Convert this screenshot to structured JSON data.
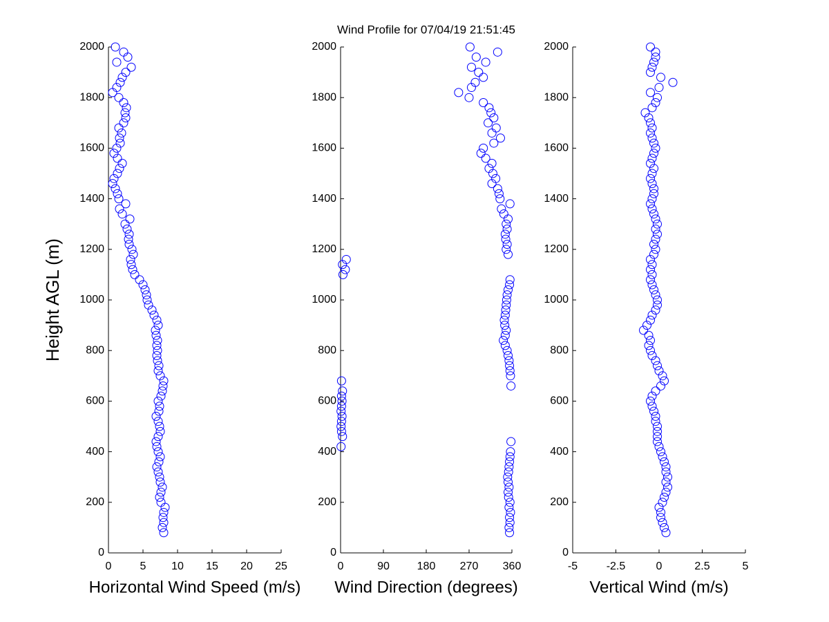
{
  "chart_data": [
    {
      "type": "scatter",
      "xlabel": "Horizontal Wind Speed (m/s)",
      "ylabel": "Height AGL (m)",
      "color": "#0000ff",
      "marker": "o",
      "xlim": [
        0,
        25
      ],
      "xticks": [
        0,
        5,
        10,
        15,
        20,
        25
      ],
      "ylim": [
        0,
        2000
      ],
      "yticks": [
        0,
        200,
        400,
        600,
        800,
        1000,
        1200,
        1400,
        1600,
        1800,
        2000
      ],
      "x": [
        8.0,
        7.8,
        8.0,
        7.9,
        8.0,
        8.2,
        7.6,
        7.4,
        7.6,
        7.8,
        7.5,
        7.4,
        7.2,
        7.0,
        7.3,
        7.5,
        7.2,
        7.0,
        6.9,
        7.2,
        7.5,
        7.4,
        7.2,
        6.9,
        7.3,
        7.4,
        7.2,
        7.6,
        7.8,
        7.9,
        8.0,
        7.5,
        7.2,
        7.3,
        7.1,
        7.0,
        7.1,
        7.0,
        7.1,
        6.9,
        6.8,
        7.2,
        7.0,
        6.6,
        6.3,
        5.8,
        5.6,
        5.5,
        5.3,
        5.0,
        4.5,
        3.8,
        3.5,
        3.3,
        3.2,
        3.6,
        3.4,
        3.0,
        2.9,
        3.0,
        2.7,
        2.4,
        3.1,
        2.0,
        1.6,
        2.5,
        1.5,
        1.3,
        1.0,
        0.6,
        0.8,
        1.3,
        1.6,
        2.0,
        1.3,
        0.8,
        1.2,
        1.7,
        1.6,
        1.9,
        1.5,
        2.2,
        2.5,
        2.4,
        2.6,
        2.2,
        1.5,
        0.6,
        1.2,
        1.7,
        2.0,
        2.5,
        3.3,
        1.2,
        2.8,
        2.2,
        1.0
      ],
      "y": [
        80,
        100,
        120,
        140,
        160,
        180,
        200,
        220,
        240,
        260,
        280,
        300,
        320,
        340,
        360,
        380,
        400,
        420,
        440,
        460,
        480,
        500,
        520,
        540,
        560,
        580,
        600,
        620,
        640,
        660,
        680,
        700,
        720,
        740,
        760,
        780,
        800,
        820,
        840,
        860,
        880,
        900,
        920,
        940,
        960,
        980,
        1000,
        1020,
        1040,
        1060,
        1080,
        1100,
        1120,
        1140,
        1160,
        1180,
        1200,
        1220,
        1240,
        1260,
        1280,
        1300,
        1320,
        1340,
        1360,
        1380,
        1400,
        1420,
        1440,
        1460,
        1480,
        1500,
        1520,
        1540,
        1560,
        1580,
        1600,
        1620,
        1640,
        1660,
        1680,
        1700,
        1720,
        1740,
        1760,
        1780,
        1800,
        1820,
        1840,
        1860,
        1880,
        1900,
        1920,
        1940,
        1960,
        1980,
        2000
      ]
    },
    {
      "type": "scatter",
      "title": "Wind Profile for  07/04/19 21:51:45",
      "xlabel": "Wind Direction (degrees)",
      "color": "#0000ff",
      "marker": "o",
      "xlim": [
        0,
        360
      ],
      "xticks": [
        0,
        90,
        180,
        270,
        360
      ],
      "ylim": [
        0,
        2000
      ],
      "yticks": [
        0,
        200,
        400,
        600,
        800,
        1000,
        1200,
        1400,
        1600,
        1800,
        2000
      ],
      "x": [
        355,
        354,
        356,
        355,
        357,
        354,
        356,
        353,
        352,
        354,
        352,
        351,
        353,
        354,
        355,
        356,
        357,
        1,
        358,
        4,
        2,
        1,
        2,
        3,
        1,
        2,
        3,
        2,
        4,
        358,
        2,
        357,
        356,
        355,
        354,
        352,
        350,
        346,
        342,
        346,
        348,
        345,
        344,
        346,
        347,
        348,
        349,
        350,
        352,
        355,
        356,
        5,
        10,
        4,
        12,
        352,
        348,
        350,
        347,
        346,
        350,
        348,
        352,
        343,
        338,
        356,
        335,
        333,
        330,
        318,
        326,
        320,
        312,
        318,
        305,
        295,
        300,
        322,
        336,
        318,
        327,
        310,
        322,
        316,
        312,
        300,
        270,
        248,
        275,
        283,
        300,
        290,
        275,
        305,
        285,
        330,
        272
      ],
      "y": [
        80,
        100,
        120,
        140,
        160,
        180,
        200,
        220,
        240,
        260,
        280,
        300,
        320,
        340,
        360,
        380,
        400,
        420,
        440,
        460,
        480,
        500,
        520,
        540,
        560,
        580,
        600,
        620,
        640,
        660,
        680,
        700,
        720,
        740,
        760,
        780,
        800,
        820,
        840,
        860,
        880,
        900,
        920,
        940,
        960,
        980,
        1000,
        1020,
        1040,
        1060,
        1080,
        1100,
        1120,
        1140,
        1160,
        1180,
        1200,
        1220,
        1240,
        1260,
        1280,
        1300,
        1320,
        1340,
        1360,
        1380,
        1400,
        1420,
        1440,
        1460,
        1480,
        1500,
        1520,
        1540,
        1560,
        1580,
        1600,
        1620,
        1640,
        1660,
        1680,
        1700,
        1720,
        1740,
        1760,
        1780,
        1800,
        1820,
        1840,
        1860,
        1880,
        1900,
        1920,
        1940,
        1960,
        1980,
        2000
      ]
    },
    {
      "type": "scatter",
      "xlabel": "Vertical Wind (m/s)",
      "color": "#0000ff",
      "marker": "o",
      "xlim": [
        -5,
        5
      ],
      "xticks": [
        -5,
        -2.5,
        0,
        2.5,
        5
      ],
      "ylim": [
        0,
        2000
      ],
      "yticks": [
        0,
        200,
        400,
        600,
        800,
        1000,
        1200,
        1400,
        1600,
        1800,
        2000
      ],
      "x": [
        0.4,
        0.3,
        0.2,
        0.1,
        0.1,
        0.0,
        0.2,
        0.3,
        0.4,
        0.5,
        0.4,
        0.5,
        0.4,
        0.4,
        0.3,
        0.2,
        0.1,
        0.0,
        -0.1,
        -0.1,
        -0.1,
        -0.1,
        -0.2,
        -0.2,
        -0.3,
        -0.4,
        -0.5,
        -0.4,
        -0.2,
        0.1,
        0.3,
        0.2,
        0.0,
        -0.1,
        -0.2,
        -0.4,
        -0.5,
        -0.6,
        -0.5,
        -0.6,
        -0.9,
        -0.7,
        -0.5,
        -0.4,
        -0.2,
        -0.1,
        -0.1,
        -0.2,
        -0.3,
        -0.4,
        -0.5,
        -0.4,
        -0.5,
        -0.4,
        -0.5,
        -0.3,
        -0.2,
        -0.3,
        -0.2,
        -0.1,
        -0.2,
        -0.1,
        -0.2,
        -0.3,
        -0.4,
        -0.5,
        -0.4,
        -0.3,
        -0.3,
        -0.4,
        -0.5,
        -0.4,
        -0.3,
        -0.5,
        -0.4,
        -0.3,
        -0.2,
        -0.3,
        -0.4,
        -0.5,
        -0.4,
        -0.5,
        -0.6,
        -0.8,
        -0.4,
        -0.2,
        -0.1,
        -0.5,
        0.0,
        0.8,
        0.1,
        -0.5,
        -0.4,
        -0.3,
        -0.2,
        -0.2,
        -0.5
      ],
      "y": [
        80,
        100,
        120,
        140,
        160,
        180,
        200,
        220,
        240,
        260,
        280,
        300,
        320,
        340,
        360,
        380,
        400,
        420,
        440,
        460,
        480,
        500,
        520,
        540,
        560,
        580,
        600,
        620,
        640,
        660,
        680,
        700,
        720,
        740,
        760,
        780,
        800,
        820,
        840,
        860,
        880,
        900,
        920,
        940,
        960,
        980,
        1000,
        1020,
        1040,
        1060,
        1080,
        1100,
        1120,
        1140,
        1160,
        1180,
        1200,
        1220,
        1240,
        1260,
        1280,
        1300,
        1320,
        1340,
        1360,
        1380,
        1400,
        1420,
        1440,
        1460,
        1480,
        1500,
        1520,
        1540,
        1560,
        1580,
        1600,
        1620,
        1640,
        1660,
        1680,
        1700,
        1720,
        1740,
        1760,
        1780,
        1800,
        1820,
        1840,
        1860,
        1880,
        1900,
        1920,
        1940,
        1960,
        1980,
        2000
      ]
    }
  ]
}
